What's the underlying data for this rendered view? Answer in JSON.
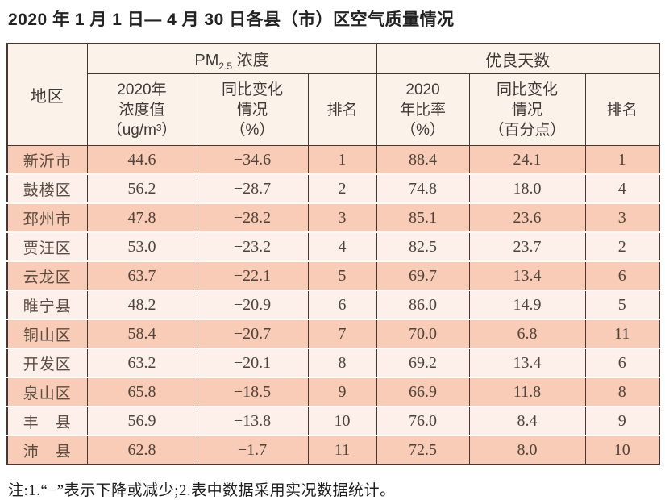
{
  "title": "2020 年 1 月 1 日— 4 月 30 日各县（市）区空气质量情况",
  "note": "注:1.“−”表示下降或减少;2.表中数据采用实况数据统计。",
  "colors": {
    "row_odd": "#f8ccb6",
    "row_even": "#fdf0ea",
    "header_bg": "#fbf2e9",
    "border": "#463831"
  },
  "table": {
    "region_header": "地区",
    "pm_group": {
      "prefix": "PM",
      "sub": "2.5",
      "suffix": " 浓度"
    },
    "good_days_group": "优良天数",
    "sub_headers": [
      {
        "id": "pm25-value",
        "lines": [
          "2020年",
          "浓度值",
          "（ug/m³）"
        ]
      },
      {
        "id": "pm25-change",
        "lines": [
          "同比变化",
          "情况",
          "（%）"
        ]
      },
      {
        "id": "pm25-rank",
        "lines": [
          "排名"
        ]
      },
      {
        "id": "good-rate",
        "lines": [
          "2020",
          "年比率",
          "（%）"
        ]
      },
      {
        "id": "good-change",
        "lines": [
          "同比变化",
          "情况",
          "（百分点）"
        ]
      },
      {
        "id": "good-rank",
        "lines": [
          "排名"
        ]
      }
    ],
    "rows": [
      {
        "region": "新沂市",
        "cells": [
          "44.6",
          "−34.6",
          "1",
          "88.4",
          "24.1",
          "1"
        ]
      },
      {
        "region": "鼓楼区",
        "cells": [
          "56.2",
          "−28.7",
          "2",
          "74.8",
          "18.0",
          "4"
        ]
      },
      {
        "region": "邳州市",
        "cells": [
          "47.8",
          "−28.2",
          "3",
          "85.1",
          "23.6",
          "3"
        ]
      },
      {
        "region": "贾汪区",
        "cells": [
          "53.0",
          "−23.2",
          "4",
          "82.5",
          "23.7",
          "2"
        ]
      },
      {
        "region": "云龙区",
        "cells": [
          "63.7",
          "−22.1",
          "5",
          "69.7",
          "13.4",
          "6"
        ]
      },
      {
        "region": "睢宁县",
        "cells": [
          "48.2",
          "−20.9",
          "6",
          "86.0",
          "14.9",
          "5"
        ]
      },
      {
        "region": "铜山区",
        "cells": [
          "58.4",
          "−20.7",
          "7",
          "70.0",
          "6.8",
          "11"
        ]
      },
      {
        "region": "开发区",
        "cells": [
          "63.2",
          "−20.1",
          "8",
          "69.2",
          "13.4",
          "6"
        ]
      },
      {
        "region": "泉山区",
        "cells": [
          "65.8",
          "−18.5",
          "9",
          "66.9",
          "11.8",
          "8"
        ]
      },
      {
        "region": "丰　县",
        "cells": [
          "56.9",
          "−13.8",
          "10",
          "76.0",
          "8.4",
          "9"
        ]
      },
      {
        "region": "沛　县",
        "cells": [
          "62.8",
          "−1.7",
          "11",
          "72.5",
          "8.0",
          "10"
        ]
      }
    ]
  }
}
